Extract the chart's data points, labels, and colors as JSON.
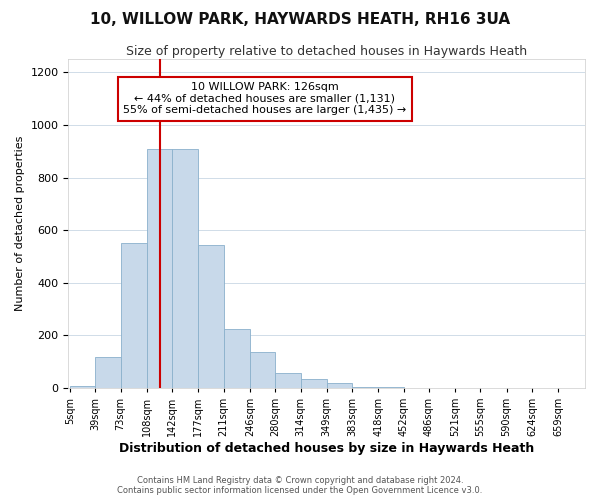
{
  "title1": "10, WILLOW PARK, HAYWARDS HEATH, RH16 3UA",
  "title2": "Size of property relative to detached houses in Haywards Heath",
  "xlabel": "Distribution of detached houses by size in Haywards Heath",
  "ylabel": "Number of detached properties",
  "footer1": "Contains HM Land Registry data © Crown copyright and database right 2024.",
  "footer2": "Contains public sector information licensed under the Open Government Licence v3.0.",
  "property_label": "10 WILLOW PARK: 126sqm",
  "annotation_line1": "← 44% of detached houses are smaller (1,131)",
  "annotation_line2": "55% of semi-detached houses are larger (1,435) →",
  "bar_edges": [
    5,
    39,
    73,
    108,
    142,
    177,
    211,
    246,
    280,
    314,
    349,
    383,
    418,
    452,
    486,
    521,
    555,
    590,
    624,
    659,
    693
  ],
  "bar_heights": [
    8,
    118,
    550,
    910,
    910,
    545,
    225,
    135,
    58,
    35,
    20,
    5,
    5,
    0,
    0,
    0,
    0,
    0,
    0,
    0
  ],
  "bar_color": "#c8d9ea",
  "bar_edge_color": "#8ab0cc",
  "vline_x": 126,
  "vline_color": "#cc0000",
  "annotation_box_color": "#cc0000",
  "grid_color": "#d0dce8",
  "ylim": [
    0,
    1250
  ],
  "yticks": [
    0,
    200,
    400,
    600,
    800,
    1000,
    1200
  ],
  "bg_color": "#ffffff",
  "title1_fontsize": 11,
  "title2_fontsize": 9,
  "xlabel_fontsize": 9,
  "ylabel_fontsize": 8
}
